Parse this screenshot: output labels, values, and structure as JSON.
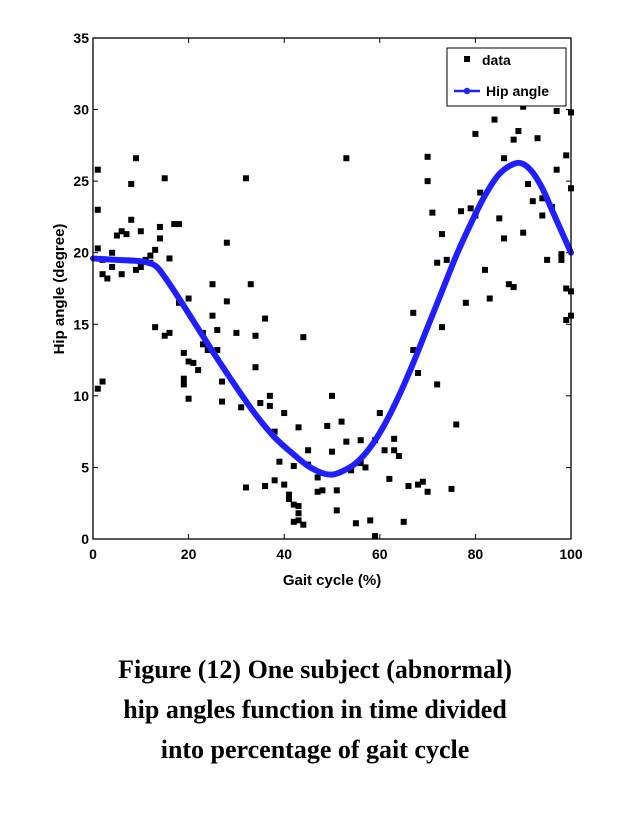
{
  "caption": {
    "line1": "Figure (12) One subject (abnormal)",
    "line2": "hip angles function in time divided",
    "line3": "into percentage of gait cycle"
  },
  "chart_data": {
    "type": "scatter",
    "xlabel": "Gait cycle (%)",
    "ylabel": "Hip angle (degree)",
    "xlim": [
      0,
      100
    ],
    "ylim": [
      0,
      35
    ],
    "xticks": [
      0,
      20,
      40,
      60,
      80,
      100
    ],
    "yticks": [
      0,
      5,
      10,
      15,
      20,
      25,
      30,
      35
    ],
    "grid": false,
    "legend_position": "top-right",
    "colors": {
      "data": "#000000",
      "line": "#1f1fff",
      "axes": "#000000"
    },
    "series": [
      {
        "name": "data",
        "kind": "scatter",
        "marker": "square",
        "points": [
          [
            1,
            25.8
          ],
          [
            1,
            23.0
          ],
          [
            1,
            10.5
          ],
          [
            2,
            11.0
          ],
          [
            1,
            20.3
          ],
          [
            2,
            19.5
          ],
          [
            2,
            18.5
          ],
          [
            3,
            18.2
          ],
          [
            4,
            20.0
          ],
          [
            4,
            19.0
          ],
          [
            5,
            21.2
          ],
          [
            6,
            21.5
          ],
          [
            6,
            18.5
          ],
          [
            7,
            21.3
          ],
          [
            8,
            22.3
          ],
          [
            8,
            24.8
          ],
          [
            9,
            26.6
          ],
          [
            9,
            18.8
          ],
          [
            10,
            19.0
          ],
          [
            10,
            21.5
          ],
          [
            11,
            19.5
          ],
          [
            12,
            19.3
          ],
          [
            12,
            19.8
          ],
          [
            13,
            20.2
          ],
          [
            13,
            14.8
          ],
          [
            14,
            21.0
          ],
          [
            14,
            21.8
          ],
          [
            15,
            25.2
          ],
          [
            15,
            14.2
          ],
          [
            16,
            19.6
          ],
          [
            16,
            14.4
          ],
          [
            17,
            22.0
          ],
          [
            18,
            22.0
          ],
          [
            18,
            16.5
          ],
          [
            19,
            13.0
          ],
          [
            19,
            11.2
          ],
          [
            19,
            10.8
          ],
          [
            20,
            12.4
          ],
          [
            20,
            9.8
          ],
          [
            20,
            16.8
          ],
          [
            21,
            12.3
          ],
          [
            22,
            11.8
          ],
          [
            23,
            14.4
          ],
          [
            23,
            13.6
          ],
          [
            24,
            13.2
          ],
          [
            25,
            17.8
          ],
          [
            25,
            15.6
          ],
          [
            26,
            14.6
          ],
          [
            26,
            13.2
          ],
          [
            27,
            11.0
          ],
          [
            27,
            9.6
          ],
          [
            28,
            16.6
          ],
          [
            28,
            20.7
          ],
          [
            30,
            14.4
          ],
          [
            31,
            9.2
          ],
          [
            32,
            3.6
          ],
          [
            32,
            25.2
          ],
          [
            33,
            17.8
          ],
          [
            34,
            14.2
          ],
          [
            34,
            12.0
          ],
          [
            35,
            9.5
          ],
          [
            36,
            15.4
          ],
          [
            36,
            3.7
          ],
          [
            37,
            10.0
          ],
          [
            37,
            9.3
          ],
          [
            38,
            4.1
          ],
          [
            38,
            7.5
          ],
          [
            39,
            5.4
          ],
          [
            40,
            8.8
          ],
          [
            40,
            3.8
          ],
          [
            41,
            2.8
          ],
          [
            41,
            3.1
          ],
          [
            42,
            2.4
          ],
          [
            42,
            1.2
          ],
          [
            42,
            5.1
          ],
          [
            43,
            2.3
          ],
          [
            43,
            1.3
          ],
          [
            43,
            1.8
          ],
          [
            43,
            7.8
          ],
          [
            44,
            14.1
          ],
          [
            44,
            1.0
          ],
          [
            45,
            6.2
          ],
          [
            45,
            5.2
          ],
          [
            47,
            3.3
          ],
          [
            47,
            4.3
          ],
          [
            48,
            3.4
          ],
          [
            49,
            7.9
          ],
          [
            50,
            10.0
          ],
          [
            50,
            6.1
          ],
          [
            51,
            3.4
          ],
          [
            51,
            2.0
          ],
          [
            52,
            8.2
          ],
          [
            53,
            26.6
          ],
          [
            53,
            6.8
          ],
          [
            54,
            4.8
          ],
          [
            55,
            1.1
          ],
          [
            56,
            6.9
          ],
          [
            56,
            5.3
          ],
          [
            57,
            5.0
          ],
          [
            58,
            1.3
          ],
          [
            59,
            0.2
          ],
          [
            59,
            6.9
          ],
          [
            60,
            8.8
          ],
          [
            61,
            6.2
          ],
          [
            62,
            4.2
          ],
          [
            63,
            7.0
          ],
          [
            63,
            6.2
          ],
          [
            64,
            5.8
          ],
          [
            65,
            1.2
          ],
          [
            66,
            3.7
          ],
          [
            67,
            15.8
          ],
          [
            67,
            13.2
          ],
          [
            68,
            11.6
          ],
          [
            68,
            3.8
          ],
          [
            69,
            4.0
          ],
          [
            70,
            3.3
          ],
          [
            70,
            25.0
          ],
          [
            70,
            26.7
          ],
          [
            71,
            22.8
          ],
          [
            72,
            19.3
          ],
          [
            72,
            10.8
          ],
          [
            73,
            14.8
          ],
          [
            73,
            21.3
          ],
          [
            74,
            19.5
          ],
          [
            75,
            3.5
          ],
          [
            76,
            8.0
          ],
          [
            77,
            22.9
          ],
          [
            78,
            16.5
          ],
          [
            79,
            23.1
          ],
          [
            80,
            28.3
          ],
          [
            80,
            22.6
          ],
          [
            81,
            24.2
          ],
          [
            82,
            18.8
          ],
          [
            83,
            16.8
          ],
          [
            84,
            29.3
          ],
          [
            85,
            22.4
          ],
          [
            86,
            21.0
          ],
          [
            86,
            26.6
          ],
          [
            87,
            17.8
          ],
          [
            88,
            17.6
          ],
          [
            88,
            27.9
          ],
          [
            89,
            28.5
          ],
          [
            90,
            21.4
          ],
          [
            90,
            30.2
          ],
          [
            91,
            24.8
          ],
          [
            92,
            23.6
          ],
          [
            92,
            30.5
          ],
          [
            93,
            28.0
          ],
          [
            94,
            23.8
          ],
          [
            94,
            22.6
          ],
          [
            95,
            19.5
          ],
          [
            96,
            23.2
          ],
          [
            96,
            30.5
          ],
          [
            97,
            25.8
          ],
          [
            97,
            29.9
          ],
          [
            98,
            19.5
          ],
          [
            98,
            19.9
          ],
          [
            99,
            15.3
          ],
          [
            99,
            17.5
          ],
          [
            99,
            26.8
          ],
          [
            100,
            29.8
          ],
          [
            100,
            24.5
          ],
          [
            100,
            17.3
          ],
          [
            100,
            15.6
          ]
        ]
      },
      {
        "name": "Hip angle",
        "kind": "line",
        "points": [
          [
            0,
            19.6
          ],
          [
            5,
            19.5
          ],
          [
            10,
            19.4
          ],
          [
            13,
            19.1
          ],
          [
            15,
            18.3
          ],
          [
            18,
            16.8
          ],
          [
            22,
            14.7
          ],
          [
            26,
            12.6
          ],
          [
            30,
            10.6
          ],
          [
            34,
            8.7
          ],
          [
            38,
            7.1
          ],
          [
            42,
            5.9
          ],
          [
            45,
            5.1
          ],
          [
            48,
            4.6
          ],
          [
            50,
            4.5
          ],
          [
            52,
            4.7
          ],
          [
            55,
            5.3
          ],
          [
            58,
            6.4
          ],
          [
            61,
            8.0
          ],
          [
            64,
            10.0
          ],
          [
            67,
            12.3
          ],
          [
            70,
            14.8
          ],
          [
            73,
            17.3
          ],
          [
            76,
            19.8
          ],
          [
            79,
            22.0
          ],
          [
            82,
            24.0
          ],
          [
            85,
            25.5
          ],
          [
            88,
            26.2
          ],
          [
            90,
            26.2
          ],
          [
            92,
            25.6
          ],
          [
            94,
            24.5
          ],
          [
            96,
            23.0
          ],
          [
            98,
            21.5
          ],
          [
            100,
            20.0
          ]
        ]
      }
    ]
  }
}
